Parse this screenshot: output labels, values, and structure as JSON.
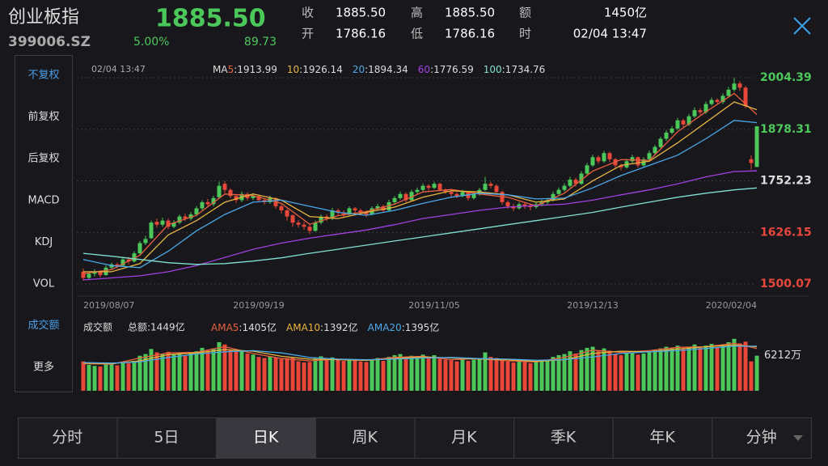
{
  "header": {
    "name": "创业板指",
    "code": "399006.SZ",
    "price": "1885.50",
    "change_pct": "5.00%",
    "change": "89.73",
    "stats": [
      [
        {
          "label": "收",
          "value": "1885.50"
        },
        {
          "label": "高",
          "value": "1885.50"
        },
        {
          "label": "额",
          "value": "1450亿"
        }
      ],
      [
        {
          "label": "开",
          "value": "1786.16"
        },
        {
          "label": "低",
          "value": "1786.16"
        },
        {
          "label": "时",
          "value": "02/04 13:47"
        }
      ]
    ]
  },
  "sidebar": {
    "items": [
      {
        "label": "不复权",
        "active": true
      },
      {
        "label": "前复权",
        "active": false
      },
      {
        "label": "后复权",
        "active": false
      },
      {
        "label": "MACD",
        "active": false
      },
      {
        "label": "KDJ",
        "active": false
      },
      {
        "label": "VOL",
        "active": false
      },
      {
        "label": "成交额",
        "active": true
      },
      {
        "label": "更多",
        "active": false
      }
    ]
  },
  "chart_data": [
    {
      "type": "candlestick",
      "subtitle": "02/04 13:47",
      "legend_prefix": "MA",
      "up_color": "#4cc85a",
      "down_color": "#e8473a",
      "ylim": [
        1500.07,
        2004.39
      ],
      "yticks": [
        1500.07,
        1626.15,
        1752.23,
        1878.31,
        2004.39
      ],
      "ytick_colors": [
        "#e8473a",
        "#e8473a",
        "#dddddd",
        "#4cc85a",
        "#4cc85a"
      ],
      "grid": true,
      "x_labels": [
        {
          "value": 0,
          "label": "2019/08/07"
        },
        {
          "value": 31,
          "label": "2019/09/19"
        },
        {
          "value": 62,
          "label": "2019/11/05"
        },
        {
          "value": 90,
          "label": "2019/12/13"
        },
        {
          "value": 119,
          "label": "2020/02/04"
        }
      ],
      "ohlc": [
        [
          1530,
          1538,
          1508,
          1515
        ],
        [
          1515,
          1530,
          1510,
          1525
        ],
        [
          1525,
          1536,
          1518,
          1530
        ],
        [
          1530,
          1534,
          1516,
          1522
        ],
        [
          1522,
          1545,
          1520,
          1540
        ],
        [
          1540,
          1552,
          1535,
          1548
        ],
        [
          1548,
          1552,
          1538,
          1545
        ],
        [
          1545,
          1565,
          1542,
          1560
        ],
        [
          1560,
          1566,
          1548,
          1555
        ],
        [
          1555,
          1580,
          1552,
          1575
        ],
        [
          1575,
          1605,
          1572,
          1600
        ],
        [
          1600,
          1618,
          1595,
          1610
        ],
        [
          1612,
          1655,
          1610,
          1650
        ],
        [
          1652,
          1660,
          1638,
          1645
        ],
        [
          1645,
          1662,
          1640,
          1655
        ],
        [
          1655,
          1660,
          1634,
          1640
        ],
        [
          1640,
          1656,
          1636,
          1650
        ],
        [
          1650,
          1670,
          1646,
          1665
        ],
        [
          1665,
          1672,
          1654,
          1660
        ],
        [
          1660,
          1676,
          1655,
          1670
        ],
        [
          1670,
          1690,
          1666,
          1685
        ],
        [
          1685,
          1705,
          1680,
          1700
        ],
        [
          1700,
          1708,
          1688,
          1695
        ],
        [
          1695,
          1716,
          1690,
          1710
        ],
        [
          1712,
          1750,
          1708,
          1740
        ],
        [
          1745,
          1752,
          1722,
          1730
        ],
        [
          1730,
          1734,
          1710,
          1715
        ],
        [
          1715,
          1720,
          1698,
          1705
        ],
        [
          1705,
          1726,
          1700,
          1720
        ],
        [
          1720,
          1724,
          1704,
          1710
        ],
        [
          1710,
          1722,
          1705,
          1715
        ],
        [
          1715,
          1718,
          1700,
          1705
        ],
        [
          1705,
          1710,
          1694,
          1700
        ],
        [
          1700,
          1716,
          1696,
          1710
        ],
        [
          1710,
          1712,
          1684,
          1690
        ],
        [
          1690,
          1695,
          1672,
          1680
        ],
        [
          1680,
          1684,
          1655,
          1665
        ],
        [
          1668,
          1670,
          1640,
          1650
        ],
        [
          1650,
          1656,
          1638,
          1645
        ],
        [
          1645,
          1652,
          1632,
          1640
        ],
        [
          1640,
          1645,
          1622,
          1630
        ],
        [
          1630,
          1655,
          1628,
          1650
        ],
        [
          1650,
          1670,
          1646,
          1665
        ],
        [
          1665,
          1670,
          1654,
          1660
        ],
        [
          1660,
          1686,
          1656,
          1680
        ],
        [
          1680,
          1684,
          1668,
          1675
        ],
        [
          1675,
          1680,
          1664,
          1670
        ],
        [
          1670,
          1690,
          1666,
          1685
        ],
        [
          1685,
          1688,
          1674,
          1680
        ],
        [
          1680,
          1684,
          1670,
          1675
        ],
        [
          1675,
          1680,
          1664,
          1670
        ],
        [
          1670,
          1690,
          1668,
          1685
        ],
        [
          1685,
          1696,
          1680,
          1690
        ],
        [
          1690,
          1694,
          1676,
          1680
        ],
        [
          1680,
          1706,
          1678,
          1700
        ],
        [
          1700,
          1715,
          1695,
          1710
        ],
        [
          1710,
          1726,
          1706,
          1720
        ],
        [
          1720,
          1724,
          1700,
          1705
        ],
        [
          1705,
          1730,
          1702,
          1725
        ],
        [
          1725,
          1736,
          1720,
          1730
        ],
        [
          1730,
          1746,
          1726,
          1740
        ],
        [
          1740,
          1744,
          1728,
          1735
        ],
        [
          1735,
          1750,
          1732,
          1745
        ],
        [
          1745,
          1748,
          1726,
          1730
        ],
        [
          1730,
          1734,
          1720,
          1725
        ],
        [
          1725,
          1728,
          1714,
          1720
        ],
        [
          1720,
          1724,
          1710,
          1715
        ],
        [
          1715,
          1730,
          1712,
          1725
        ],
        [
          1725,
          1728,
          1704,
          1710
        ],
        [
          1710,
          1725,
          1706,
          1720
        ],
        [
          1720,
          1735,
          1716,
          1730
        ],
        [
          1730,
          1762,
          1728,
          1745
        ],
        [
          1745,
          1750,
          1734,
          1740
        ],
        [
          1740,
          1744,
          1720,
          1725
        ],
        [
          1725,
          1728,
          1694,
          1700
        ],
        [
          1700,
          1704,
          1684,
          1690
        ],
        [
          1690,
          1696,
          1678,
          1685
        ],
        [
          1685,
          1700,
          1682,
          1695
        ],
        [
          1695,
          1698,
          1684,
          1690
        ],
        [
          1690,
          1694,
          1680,
          1688
        ],
        [
          1688,
          1700,
          1684,
          1695
        ],
        [
          1695,
          1706,
          1690,
          1700
        ],
        [
          1700,
          1710,
          1694,
          1705
        ],
        [
          1705,
          1726,
          1702,
          1720
        ],
        [
          1720,
          1736,
          1716,
          1730
        ],
        [
          1730,
          1746,
          1726,
          1740
        ],
        [
          1740,
          1762,
          1736,
          1755
        ],
        [
          1755,
          1760,
          1738,
          1745
        ],
        [
          1745,
          1776,
          1742,
          1770
        ],
        [
          1770,
          1796,
          1766,
          1790
        ],
        [
          1790,
          1816,
          1786,
          1810
        ],
        [
          1810,
          1814,
          1794,
          1800
        ],
        [
          1800,
          1826,
          1796,
          1820
        ],
        [
          1820,
          1824,
          1798,
          1805
        ],
        [
          1805,
          1808,
          1784,
          1790
        ],
        [
          1790,
          1794,
          1778,
          1785
        ],
        [
          1785,
          1806,
          1782,
          1800
        ],
        [
          1800,
          1816,
          1796,
          1810
        ],
        [
          1810,
          1812,
          1784,
          1790
        ],
        [
          1790,
          1810,
          1786,
          1805
        ],
        [
          1805,
          1826,
          1802,
          1820
        ],
        [
          1820,
          1840,
          1816,
          1835
        ],
        [
          1835,
          1860,
          1832,
          1855
        ],
        [
          1855,
          1876,
          1850,
          1870
        ],
        [
          1870,
          1886,
          1866,
          1880
        ],
        [
          1880,
          1906,
          1876,
          1900
        ],
        [
          1900,
          1904,
          1884,
          1890
        ],
        [
          1890,
          1916,
          1886,
          1910
        ],
        [
          1910,
          1932,
          1906,
          1925
        ],
        [
          1925,
          1930,
          1914,
          1920
        ],
        [
          1920,
          1946,
          1916,
          1940
        ],
        [
          1940,
          1956,
          1936,
          1950
        ],
        [
          1950,
          1954,
          1938,
          1945
        ],
        [
          1945,
          1966,
          1940,
          1960
        ],
        [
          1960,
          1982,
          1956,
          1975
        ],
        [
          1975,
          2004,
          1970,
          1990
        ],
        [
          1990,
          1996,
          1972,
          1980
        ],
        [
          1980,
          1984,
          1930,
          1935
        ],
        [
          1805,
          1815,
          1780,
          1795.77
        ],
        [
          1786.16,
          1885.5,
          1786.16,
          1885.5
        ]
      ],
      "ma_x": [
        0,
        5,
        10,
        15,
        20,
        25,
        30,
        35,
        40,
        45,
        50,
        55,
        60,
        65,
        70,
        75,
        80,
        85,
        90,
        95,
        100,
        105,
        110,
        115,
        119
      ],
      "series": [
        {
          "name": "5",
          "label": ":1913.99",
          "color": "#e8603e",
          "values": [
            1525,
            1535,
            1570,
            1645,
            1668,
            1720,
            1716,
            1697,
            1646,
            1667,
            1677,
            1695,
            1725,
            1731,
            1720,
            1712,
            1691,
            1722,
            1776,
            1804,
            1802,
            1872,
            1921,
            1966,
            1913.99
          ]
        },
        {
          "name": "10",
          "label": ":1926.14",
          "color": "#e8b43e",
          "values": [
            1530,
            1530,
            1550,
            1620,
            1655,
            1700,
            1720,
            1705,
            1665,
            1660,
            1675,
            1688,
            1712,
            1728,
            1725,
            1718,
            1700,
            1708,
            1752,
            1790,
            1800,
            1845,
            1895,
            1945,
            1926.14
          ]
        },
        {
          "name": "20",
          "label": ":1894.34",
          "color": "#4aa8e8",
          "values": [
            1560,
            1545,
            1540,
            1580,
            1630,
            1670,
            1700,
            1705,
            1690,
            1675,
            1668,
            1680,
            1697,
            1712,
            1722,
            1718,
            1708,
            1710,
            1735,
            1765,
            1790,
            1815,
            1855,
            1900,
            1894.34
          ]
        },
        {
          "name": "60",
          "label": ":1776.59",
          "color": "#a040e0",
          "values": [
            1510,
            1515,
            1520,
            1530,
            1545,
            1565,
            1585,
            1600,
            1612,
            1622,
            1632,
            1645,
            1660,
            1670,
            1680,
            1688,
            1692,
            1695,
            1705,
            1718,
            1730,
            1745,
            1762,
            1775,
            1776.59
          ]
        },
        {
          "name": "100",
          "label": ":1734.76",
          "color": "#80e0d0",
          "values": [
            1575,
            1568,
            1560,
            1552,
            1548,
            1550,
            1556,
            1564,
            1575,
            1585,
            1595,
            1605,
            1615,
            1625,
            1635,
            1645,
            1655,
            1665,
            1675,
            1688,
            1700,
            1712,
            1722,
            1730,
            1734.76
          ]
        }
      ]
    },
    {
      "type": "bar",
      "title": "成交额",
      "total_label": "总额:1449亿",
      "ylim": [
        0,
        9600
      ],
      "yticks": [
        {
          "value": 6212,
          "label": "6212万"
        }
      ],
      "values": [
        5200,
        4600,
        4400,
        4300,
        4700,
        4800,
        4500,
        5000,
        4900,
        5300,
        6200,
        6500,
        7400,
        6800,
        6600,
        6900,
        6400,
        6700,
        6200,
        6600,
        7000,
        7600,
        7100,
        7500,
        8600,
        8200,
        7300,
        6900,
        7100,
        6600,
        6400,
        6000,
        5800,
        6100,
        5900,
        5600,
        5800,
        5900,
        5200,
        5000,
        5100,
        5700,
        6100,
        5600,
        5900,
        5500,
        5300,
        5600,
        5400,
        5200,
        5100,
        5500,
        5800,
        5300,
        6000,
        6300,
        6500,
        5900,
        6200,
        6100,
        6400,
        5900,
        6300,
        5700,
        5500,
        5400,
        5200,
        5600,
        5300,
        5500,
        5700,
        6800,
        6000,
        5800,
        5600,
        5200,
        5000,
        5300,
        5100,
        4900,
        5200,
        5400,
        5500,
        6000,
        6300,
        6500,
        7000,
        6600,
        7200,
        7600,
        7800,
        7000,
        7500,
        7100,
        6500,
        6300,
        6700,
        6800,
        6400,
        6600,
        7000,
        7300,
        7500,
        7800,
        7600,
        8000,
        7400,
        7700,
        8200,
        7600,
        8000,
        8300,
        7700,
        8200,
        8600,
        9200,
        8400,
        8700,
        5200,
        6212
      ],
      "ma_x": [
        0,
        5,
        10,
        15,
        20,
        25,
        30,
        35,
        40,
        45,
        50,
        55,
        60,
        65,
        70,
        75,
        80,
        85,
        90,
        95,
        100,
        105,
        110,
        115,
        119
      ],
      "series": [
        {
          "name": "AMA5",
          "label": ":1405亿",
          "color": "#e8603e",
          "values": [
            4800,
            4700,
            5800,
            6700,
            6800,
            7800,
            6600,
            5700,
            5300,
            5600,
            5400,
            5900,
            6100,
            5500,
            5700,
            5300,
            5100,
            5900,
            7200,
            6800,
            7100,
            7700,
            7800,
            8400,
            7500
          ]
        },
        {
          "name": "AMA10",
          "label": ":1392亿",
          "color": "#e8b43e",
          "values": [
            4900,
            4800,
            5300,
            6400,
            6700,
            7300,
            7000,
            6100,
            5600,
            5500,
            5400,
            5700,
            6000,
            5800,
            5600,
            5500,
            5200,
            5500,
            6600,
            7000,
            6900,
            7400,
            7800,
            8100,
            7800
          ]
        },
        {
          "name": "AMA20",
          "label": ":1395亿",
          "color": "#4aa8e8",
          "values": [
            5000,
            4900,
            5100,
            5900,
            6500,
            6900,
            7100,
            6700,
            5900,
            5600,
            5500,
            5600,
            5800,
            5900,
            5700,
            5600,
            5400,
            5500,
            6000,
            6600,
            6900,
            7100,
            7500,
            7900,
            7900
          ]
        }
      ]
    }
  ],
  "tabs": {
    "items": [
      "分时",
      "5日",
      "日K",
      "周K",
      "月K",
      "季K",
      "年K",
      "分钟"
    ],
    "selected": 2
  }
}
